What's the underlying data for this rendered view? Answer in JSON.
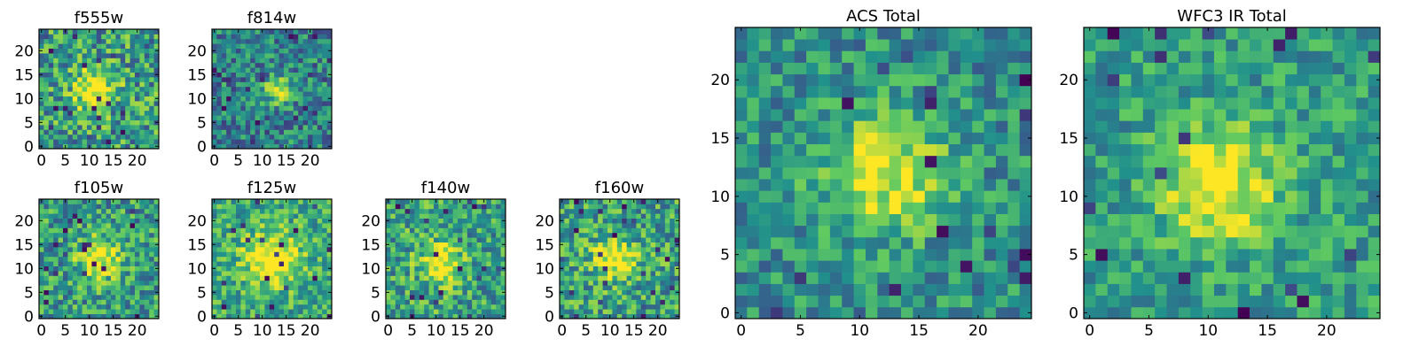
{
  "figure": {
    "colormap": "viridis",
    "colormap_stops": [
      "#440154",
      "#3b528b",
      "#21918c",
      "#5ec962",
      "#fde725"
    ]
  },
  "chart_data": [
    {
      "type": "heatmap",
      "title": "f555w",
      "grid_size": [
        25,
        25
      ],
      "xlim": [
        -0.5,
        24.5
      ],
      "ylim": [
        -0.5,
        24.5
      ],
      "x_ticks": [
        0,
        5,
        10,
        15,
        20
      ],
      "y_ticks": [
        0,
        5,
        10,
        15,
        20
      ],
      "peak_center": [
        11,
        12
      ],
      "peak_width": 3.0,
      "noise": 0.32,
      "base": 0.55,
      "seed": 11
    },
    {
      "type": "heatmap",
      "title": "f814w",
      "grid_size": [
        25,
        25
      ],
      "xlim": [
        -0.5,
        24.5
      ],
      "ylim": [
        -0.5,
        24.5
      ],
      "x_ticks": [
        0,
        5,
        10,
        15,
        20
      ],
      "y_ticks": [
        0,
        5,
        10,
        15,
        20
      ],
      "peak_center": [
        13,
        12
      ],
      "peak_width": 2.0,
      "noise": 0.26,
      "base": 0.45,
      "seed": 23
    },
    {
      "type": "heatmap",
      "title": "f105w",
      "grid_size": [
        25,
        25
      ],
      "xlim": [
        -0.5,
        24.5
      ],
      "ylim": [
        -0.5,
        24.5
      ],
      "x_ticks": [
        0,
        5,
        10,
        15,
        20
      ],
      "y_ticks": [
        0,
        5,
        10,
        15,
        20
      ],
      "peak_center": [
        12,
        12
      ],
      "peak_width": 3.0,
      "noise": 0.28,
      "base": 0.55,
      "seed": 37
    },
    {
      "type": "heatmap",
      "title": "f125w",
      "grid_size": [
        25,
        25
      ],
      "xlim": [
        -0.5,
        24.5
      ],
      "ylim": [
        -0.5,
        24.5
      ],
      "x_ticks": [
        0,
        5,
        10,
        15,
        20
      ],
      "y_ticks": [
        0,
        5,
        10,
        15,
        20
      ],
      "peak_center": [
        12,
        12
      ],
      "peak_width": 4.0,
      "noise": 0.24,
      "base": 0.6,
      "seed": 41
    },
    {
      "type": "heatmap",
      "title": "f140w",
      "grid_size": [
        25,
        25
      ],
      "xlim": [
        -0.5,
        24.5
      ],
      "ylim": [
        -0.5,
        24.5
      ],
      "x_ticks": [
        0,
        5,
        10,
        15,
        20
      ],
      "y_ticks": [
        0,
        5,
        10,
        15,
        20
      ],
      "peak_center": [
        11,
        11
      ],
      "peak_width": 3.0,
      "noise": 0.28,
      "base": 0.58,
      "seed": 53
    },
    {
      "type": "heatmap",
      "title": "f160w",
      "grid_size": [
        25,
        25
      ],
      "xlim": [
        -0.5,
        24.5
      ],
      "ylim": [
        -0.5,
        24.5
      ],
      "x_ticks": [
        0,
        5,
        10,
        15,
        20
      ],
      "y_ticks": [
        0,
        5,
        10,
        15,
        20
      ],
      "peak_center": [
        11,
        12
      ],
      "peak_width": 3.0,
      "noise": 0.28,
      "base": 0.58,
      "seed": 67
    },
    {
      "type": "heatmap",
      "title": "ACS Total",
      "grid_size": [
        25,
        25
      ],
      "xlim": [
        -0.5,
        24.5
      ],
      "ylim": [
        -0.5,
        24.5
      ],
      "x_ticks": [
        0,
        5,
        10,
        15,
        20
      ],
      "y_ticks": [
        0,
        5,
        10,
        15,
        20
      ],
      "peak_center": [
        12,
        12
      ],
      "peak_width": 3.5,
      "noise": 0.22,
      "base": 0.5,
      "seed": 79
    },
    {
      "type": "heatmap",
      "title": "WFC3 IR Total",
      "grid_size": [
        25,
        25
      ],
      "xlim": [
        -0.5,
        24.5
      ],
      "ylim": [
        -0.5,
        24.5
      ],
      "x_ticks": [
        0,
        5,
        10,
        15,
        20
      ],
      "y_ticks": [
        0,
        5,
        10,
        15,
        20
      ],
      "peak_center": [
        11,
        11
      ],
      "peak_width": 3.5,
      "noise": 0.2,
      "base": 0.55,
      "seed": 97
    }
  ]
}
